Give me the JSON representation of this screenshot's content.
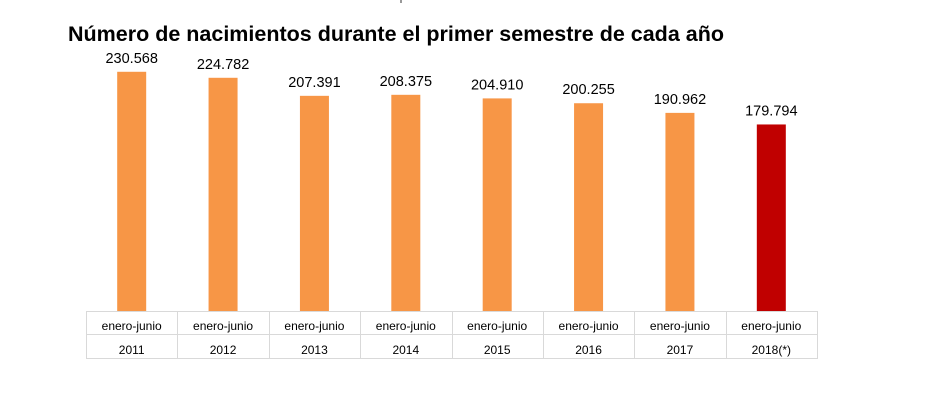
{
  "chart_data": {
    "type": "bar",
    "title": "Número de nacimientos durante el primer semestre de cada año",
    "categories": [
      [
        "enero-junio",
        "2011"
      ],
      [
        "enero-junio",
        "2012"
      ],
      [
        "enero-junio",
        "2013"
      ],
      [
        "enero-junio",
        "2014"
      ],
      [
        "enero-junio",
        "2015"
      ],
      [
        "enero-junio",
        "2016"
      ],
      [
        "enero-junio",
        "2017"
      ],
      [
        "enero-junio",
        "2018(*)"
      ]
    ],
    "values": [
      230568,
      224782,
      207391,
      208375,
      204910,
      200255,
      190962,
      179794
    ],
    "data_labels": [
      "230.568",
      "224.782",
      "207.391",
      "208.375",
      "204.910",
      "200.255",
      "190.962",
      "179.794"
    ],
    "bar_colors": [
      "#f79646",
      "#f79646",
      "#f79646",
      "#f79646",
      "#f79646",
      "#f79646",
      "#f79646",
      "#c00000"
    ],
    "ylim": [
      0,
      240000
    ],
    "xlabel": "",
    "ylabel": "",
    "grid": false,
    "legend": "none"
  }
}
